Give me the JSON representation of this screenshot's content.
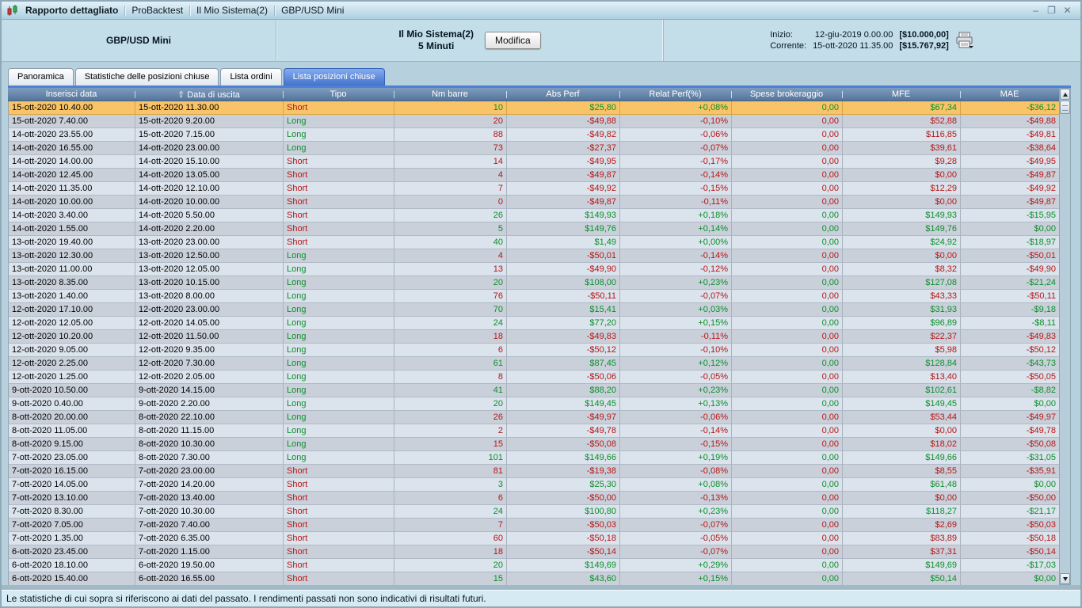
{
  "titlebar": {
    "menu_items": [
      "Rapporto dettagliato",
      "ProBacktest",
      "Il Mio Sistema(2)",
      "GBP/USD Mini"
    ]
  },
  "window_controls": {
    "minimize": "–",
    "restore": "❐",
    "close": "✕"
  },
  "header": {
    "instrument": "GBP/USD Mini",
    "system_name": "Il Mio Sistema(2)",
    "timeframe": "5 Minuti",
    "modify_button": "Modifica",
    "inizio_label": "Inizio:",
    "inizio_date": "12-giu-2019 0.00.00",
    "inizio_amount": "[$10.000,00]",
    "corrente_label": "Corrente:",
    "corrente_date": "15-ott-2020 11.35.00",
    "corrente_amount": "[$15.767,92]"
  },
  "tabs": [
    {
      "label": "Panoramica",
      "active": false
    },
    {
      "label": "Statistiche delle posizioni chiuse",
      "active": false
    },
    {
      "label": "Lista ordini",
      "active": false
    },
    {
      "label": "Lista posizioni chiuse",
      "active": true
    }
  ],
  "table": {
    "sort_icon": "⇧",
    "columns": [
      "Inserisci data",
      "Data di uscita",
      "Tipo",
      "Nm barre",
      "Abs Perf",
      "Relat Perf(%)",
      "Spese brokeraggio",
      "MFE",
      "MAE"
    ],
    "rows": [
      {
        "entry": "15-ott-2020 10.40.00",
        "exit": "15-ott-2020 11.30.00",
        "tipo": "Short",
        "bars": "10",
        "abs": "$25,80",
        "rel": "+0,08%",
        "fees": "0,00",
        "mfe": "$67,34",
        "mae": "-$36,12",
        "result": "win",
        "selected": true
      },
      {
        "entry": "15-ott-2020 7.40.00",
        "exit": "15-ott-2020 9.20.00",
        "tipo": "Long",
        "bars": "20",
        "abs": "-$49,88",
        "rel": "-0,10%",
        "fees": "0,00",
        "mfe": "$52,88",
        "mae": "-$49,88",
        "result": "loss"
      },
      {
        "entry": "14-ott-2020 23.55.00",
        "exit": "15-ott-2020 7.15.00",
        "tipo": "Long",
        "bars": "88",
        "abs": "-$49,82",
        "rel": "-0,06%",
        "fees": "0,00",
        "mfe": "$116,85",
        "mae": "-$49,81",
        "result": "loss"
      },
      {
        "entry": "14-ott-2020 16.55.00",
        "exit": "14-ott-2020 23.00.00",
        "tipo": "Long",
        "bars": "73",
        "abs": "-$27,37",
        "rel": "-0,07%",
        "fees": "0,00",
        "mfe": "$39,61",
        "mae": "-$38,64",
        "result": "loss"
      },
      {
        "entry": "14-ott-2020 14.00.00",
        "exit": "14-ott-2020 15.10.00",
        "tipo": "Short",
        "bars": "14",
        "abs": "-$49,95",
        "rel": "-0,17%",
        "fees": "0,00",
        "mfe": "$9,28",
        "mae": "-$49,95",
        "result": "loss"
      },
      {
        "entry": "14-ott-2020 12.45.00",
        "exit": "14-ott-2020 13.05.00",
        "tipo": "Short",
        "bars": "4",
        "abs": "-$49,87",
        "rel": "-0,14%",
        "fees": "0,00",
        "mfe": "$0,00",
        "mae": "-$49,87",
        "result": "loss"
      },
      {
        "entry": "14-ott-2020 11.35.00",
        "exit": "14-ott-2020 12.10.00",
        "tipo": "Short",
        "bars": "7",
        "abs": "-$49,92",
        "rel": "-0,15%",
        "fees": "0,00",
        "mfe": "$12,29",
        "mae": "-$49,92",
        "result": "loss"
      },
      {
        "entry": "14-ott-2020 10.00.00",
        "exit": "14-ott-2020 10.00.00",
        "tipo": "Short",
        "bars": "0",
        "abs": "-$49,87",
        "rel": "-0,11%",
        "fees": "0,00",
        "mfe": "$0,00",
        "mae": "-$49,87",
        "result": "loss"
      },
      {
        "entry": "14-ott-2020 3.40.00",
        "exit": "14-ott-2020 5.50.00",
        "tipo": "Short",
        "bars": "26",
        "abs": "$149,93",
        "rel": "+0,18%",
        "fees": "0,00",
        "mfe": "$149,93",
        "mae": "-$15,95",
        "result": "win"
      },
      {
        "entry": "14-ott-2020 1.55.00",
        "exit": "14-ott-2020 2.20.00",
        "tipo": "Short",
        "bars": "5",
        "abs": "$149,76",
        "rel": "+0,14%",
        "fees": "0,00",
        "mfe": "$149,76",
        "mae": "$0,00",
        "result": "win"
      },
      {
        "entry": "13-ott-2020 19.40.00",
        "exit": "13-ott-2020 23.00.00",
        "tipo": "Short",
        "bars": "40",
        "abs": "$1,49",
        "rel": "+0,00%",
        "fees": "0,00",
        "mfe": "$24,92",
        "mae": "-$18,97",
        "result": "win"
      },
      {
        "entry": "13-ott-2020 12.30.00",
        "exit": "13-ott-2020 12.50.00",
        "tipo": "Long",
        "bars": "4",
        "abs": "-$50,01",
        "rel": "-0,14%",
        "fees": "0,00",
        "mfe": "$0,00",
        "mae": "-$50,01",
        "result": "loss"
      },
      {
        "entry": "13-ott-2020 11.00.00",
        "exit": "13-ott-2020 12.05.00",
        "tipo": "Long",
        "bars": "13",
        "abs": "-$49,90",
        "rel": "-0,12%",
        "fees": "0,00",
        "mfe": "$8,32",
        "mae": "-$49,90",
        "result": "loss"
      },
      {
        "entry": "13-ott-2020 8.35.00",
        "exit": "13-ott-2020 10.15.00",
        "tipo": "Long",
        "bars": "20",
        "abs": "$108,00",
        "rel": "+0,23%",
        "fees": "0,00",
        "mfe": "$127,08",
        "mae": "-$21,24",
        "result": "win"
      },
      {
        "entry": "13-ott-2020 1.40.00",
        "exit": "13-ott-2020 8.00.00",
        "tipo": "Long",
        "bars": "76",
        "abs": "-$50,11",
        "rel": "-0,07%",
        "fees": "0,00",
        "mfe": "$43,33",
        "mae": "-$50,11",
        "result": "loss"
      },
      {
        "entry": "12-ott-2020 17.10.00",
        "exit": "12-ott-2020 23.00.00",
        "tipo": "Long",
        "bars": "70",
        "abs": "$15,41",
        "rel": "+0,03%",
        "fees": "0,00",
        "mfe": "$31,93",
        "mae": "-$9,18",
        "result": "win"
      },
      {
        "entry": "12-ott-2020 12.05.00",
        "exit": "12-ott-2020 14.05.00",
        "tipo": "Long",
        "bars": "24",
        "abs": "$77,20",
        "rel": "+0,15%",
        "fees": "0,00",
        "mfe": "$96,89",
        "mae": "-$8,11",
        "result": "win"
      },
      {
        "entry": "12-ott-2020 10.20.00",
        "exit": "12-ott-2020 11.50.00",
        "tipo": "Long",
        "bars": "18",
        "abs": "-$49,83",
        "rel": "-0,11%",
        "fees": "0,00",
        "mfe": "$22,37",
        "mae": "-$49,83",
        "result": "loss"
      },
      {
        "entry": "12-ott-2020 9.05.00",
        "exit": "12-ott-2020 9.35.00",
        "tipo": "Long",
        "bars": "6",
        "abs": "-$50,12",
        "rel": "-0,10%",
        "fees": "0,00",
        "mfe": "$5,98",
        "mae": "-$50,12",
        "result": "loss"
      },
      {
        "entry": "12-ott-2020 2.25.00",
        "exit": "12-ott-2020 7.30.00",
        "tipo": "Long",
        "bars": "61",
        "abs": "$87,45",
        "rel": "+0,12%",
        "fees": "0,00",
        "mfe": "$128,84",
        "mae": "-$43,73",
        "result": "win"
      },
      {
        "entry": "12-ott-2020 1.25.00",
        "exit": "12-ott-2020 2.05.00",
        "tipo": "Long",
        "bars": "8",
        "abs": "-$50,06",
        "rel": "-0,05%",
        "fees": "0,00",
        "mfe": "$13,40",
        "mae": "-$50,05",
        "result": "loss"
      },
      {
        "entry": "9-ott-2020 10.50.00",
        "exit": "9-ott-2020 14.15.00",
        "tipo": "Long",
        "bars": "41",
        "abs": "$88,20",
        "rel": "+0,23%",
        "fees": "0,00",
        "mfe": "$102,61",
        "mae": "-$8,82",
        "result": "win"
      },
      {
        "entry": "9-ott-2020 0.40.00",
        "exit": "9-ott-2020 2.20.00",
        "tipo": "Long",
        "bars": "20",
        "abs": "$149,45",
        "rel": "+0,13%",
        "fees": "0,00",
        "mfe": "$149,45",
        "mae": "$0,00",
        "result": "win"
      },
      {
        "entry": "8-ott-2020 20.00.00",
        "exit": "8-ott-2020 22.10.00",
        "tipo": "Long",
        "bars": "26",
        "abs": "-$49,97",
        "rel": "-0,06%",
        "fees": "0,00",
        "mfe": "$53,44",
        "mae": "-$49,97",
        "result": "loss"
      },
      {
        "entry": "8-ott-2020 11.05.00",
        "exit": "8-ott-2020 11.15.00",
        "tipo": "Long",
        "bars": "2",
        "abs": "-$49,78",
        "rel": "-0,14%",
        "fees": "0,00",
        "mfe": "$0,00",
        "mae": "-$49,78",
        "result": "loss"
      },
      {
        "entry": "8-ott-2020 9.15.00",
        "exit": "8-ott-2020 10.30.00",
        "tipo": "Long",
        "bars": "15",
        "abs": "-$50,08",
        "rel": "-0,15%",
        "fees": "0,00",
        "mfe": "$18,02",
        "mae": "-$50,08",
        "result": "loss"
      },
      {
        "entry": "7-ott-2020 23.05.00",
        "exit": "8-ott-2020 7.30.00",
        "tipo": "Long",
        "bars": "101",
        "abs": "$149,66",
        "rel": "+0,19%",
        "fees": "0,00",
        "mfe": "$149,66",
        "mae": "-$31,05",
        "result": "win"
      },
      {
        "entry": "7-ott-2020 16.15.00",
        "exit": "7-ott-2020 23.00.00",
        "tipo": "Short",
        "bars": "81",
        "abs": "-$19,38",
        "rel": "-0,08%",
        "fees": "0,00",
        "mfe": "$8,55",
        "mae": "-$35,91",
        "result": "loss"
      },
      {
        "entry": "7-ott-2020 14.05.00",
        "exit": "7-ott-2020 14.20.00",
        "tipo": "Short",
        "bars": "3",
        "abs": "$25,30",
        "rel": "+0,08%",
        "fees": "0,00",
        "mfe": "$61,48",
        "mae": "$0,00",
        "result": "win"
      },
      {
        "entry": "7-ott-2020 13.10.00",
        "exit": "7-ott-2020 13.40.00",
        "tipo": "Short",
        "bars": "6",
        "abs": "-$50,00",
        "rel": "-0,13%",
        "fees": "0,00",
        "mfe": "$0,00",
        "mae": "-$50,00",
        "result": "loss"
      },
      {
        "entry": "7-ott-2020 8.30.00",
        "exit": "7-ott-2020 10.30.00",
        "tipo": "Short",
        "bars": "24",
        "abs": "$100,80",
        "rel": "+0,23%",
        "fees": "0,00",
        "mfe": "$118,27",
        "mae": "-$21,17",
        "result": "win"
      },
      {
        "entry": "7-ott-2020 7.05.00",
        "exit": "7-ott-2020 7.40.00",
        "tipo": "Short",
        "bars": "7",
        "abs": "-$50,03",
        "rel": "-0,07%",
        "fees": "0,00",
        "mfe": "$2,69",
        "mae": "-$50,03",
        "result": "loss"
      },
      {
        "entry": "7-ott-2020 1.35.00",
        "exit": "7-ott-2020 6.35.00",
        "tipo": "Short",
        "bars": "60",
        "abs": "-$50,18",
        "rel": "-0,05%",
        "fees": "0,00",
        "mfe": "$83,89",
        "mae": "-$50,18",
        "result": "loss"
      },
      {
        "entry": "6-ott-2020 23.45.00",
        "exit": "7-ott-2020 1.15.00",
        "tipo": "Short",
        "bars": "18",
        "abs": "-$50,14",
        "rel": "-0,07%",
        "fees": "0,00",
        "mfe": "$37,31",
        "mae": "-$50,14",
        "result": "loss"
      },
      {
        "entry": "6-ott-2020 18.10.00",
        "exit": "6-ott-2020 19.50.00",
        "tipo": "Short",
        "bars": "20",
        "abs": "$149,69",
        "rel": "+0,29%",
        "fees": "0,00",
        "mfe": "$149,69",
        "mae": "-$17,03",
        "result": "win"
      },
      {
        "entry": "6-ott-2020 15.40.00",
        "exit": "6-ott-2020 16.55.00",
        "tipo": "Short",
        "bars": "15",
        "abs": "$43,60",
        "rel": "+0,15%",
        "fees": "0,00",
        "mfe": "$50,14",
        "mae": "$0,00",
        "result": "win"
      }
    ]
  },
  "footer": {
    "disclaimer": "Le statistiche di cui sopra si riferiscono ai dati del passato. I rendimenti passati non sono indicativi di risultati futuri."
  },
  "colors": {
    "win_green": "#0b8f2a",
    "loss_red": "#b41717",
    "selected_row_orange": "#f9c467",
    "active_tab_blue": "#4272cc",
    "table_header_blue": "#5f7ea6"
  }
}
